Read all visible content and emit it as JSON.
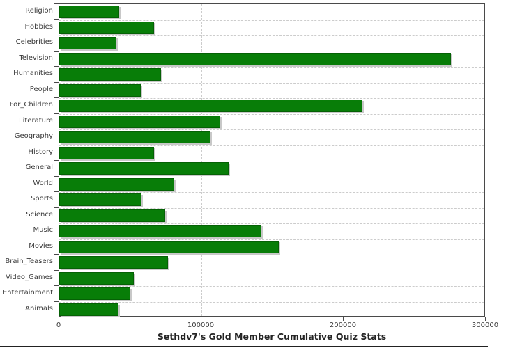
{
  "chart_data": {
    "type": "bar",
    "orientation": "horizontal",
    "title": "Sethdv7's Gold Member Cumulative Quiz Stats",
    "categories": [
      "Religion",
      "Hobbies",
      "Celebrities",
      "Television",
      "Humanities",
      "People",
      "For_Children",
      "Literature",
      "Geography",
      "History",
      "General",
      "World",
      "Sports",
      "Science",
      "Music",
      "Movies",
      "Brain_Teasers",
      "Video_Games",
      "Entertainment",
      "Animals"
    ],
    "values": [
      42000,
      66500,
      40000,
      275500,
      71500,
      57500,
      213000,
      113000,
      106500,
      66500,
      119000,
      81000,
      58000,
      74500,
      142000,
      154500,
      76500,
      52500,
      50000,
      41500
    ],
    "xlim": [
      0,
      300000
    ],
    "x_ticks": [
      0,
      100000,
      200000,
      300000
    ],
    "x_tick_labels": [
      "0",
      "100000",
      "200000",
      "300000"
    ],
    "xlabel": "",
    "ylabel": "",
    "legend": "none",
    "grid": "dashed-both",
    "colors": {
      "bar_fill": "#087d08",
      "bar_border": "#056105",
      "bar_shadow": "#c8c8c8",
      "gridline": "#cccccc",
      "axis": "#4a4a4a",
      "label_text": "#3a3a3a",
      "title_text": "#242424",
      "background": "#ffffff"
    }
  }
}
